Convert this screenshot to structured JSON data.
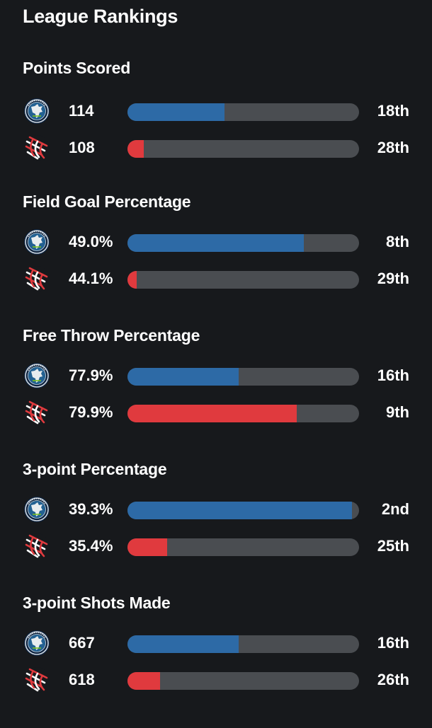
{
  "header": {
    "title": "League Rankings"
  },
  "colors": {
    "background": "#17191c",
    "track": "#4a4d51",
    "team1": "#2d6aa6",
    "team2": "#e03a3e"
  },
  "teams": [
    {
      "icon": "timberwolves-logo-icon",
      "color": "#2d6aa6"
    },
    {
      "icon": "trail-blazers-logo-icon",
      "color": "#e03a3e"
    }
  ],
  "sections": [
    {
      "title": "Points Scored",
      "rows": [
        {
          "value": "114",
          "rank": "18th",
          "fill_pct": 42
        },
        {
          "value": "108",
          "rank": "28th",
          "fill_pct": 7
        }
      ]
    },
    {
      "title": "Field Goal Percentage",
      "rows": [
        {
          "value": "49.0%",
          "rank": "8th",
          "fill_pct": 76
        },
        {
          "value": "44.1%",
          "rank": "29th",
          "fill_pct": 4
        }
      ]
    },
    {
      "title": "Free Throw Percentage",
      "rows": [
        {
          "value": "77.9%",
          "rank": "16th",
          "fill_pct": 48
        },
        {
          "value": "79.9%",
          "rank": "9th",
          "fill_pct": 73
        }
      ]
    },
    {
      "title": "3-point Percentage",
      "rows": [
        {
          "value": "39.3%",
          "rank": "2nd",
          "fill_pct": 97
        },
        {
          "value": "35.4%",
          "rank": "25th",
          "fill_pct": 17
        }
      ]
    },
    {
      "title": "3-point Shots Made",
      "rows": [
        {
          "value": "667",
          "rank": "16th",
          "fill_pct": 48
        },
        {
          "value": "618",
          "rank": "26th",
          "fill_pct": 14
        }
      ]
    }
  ]
}
